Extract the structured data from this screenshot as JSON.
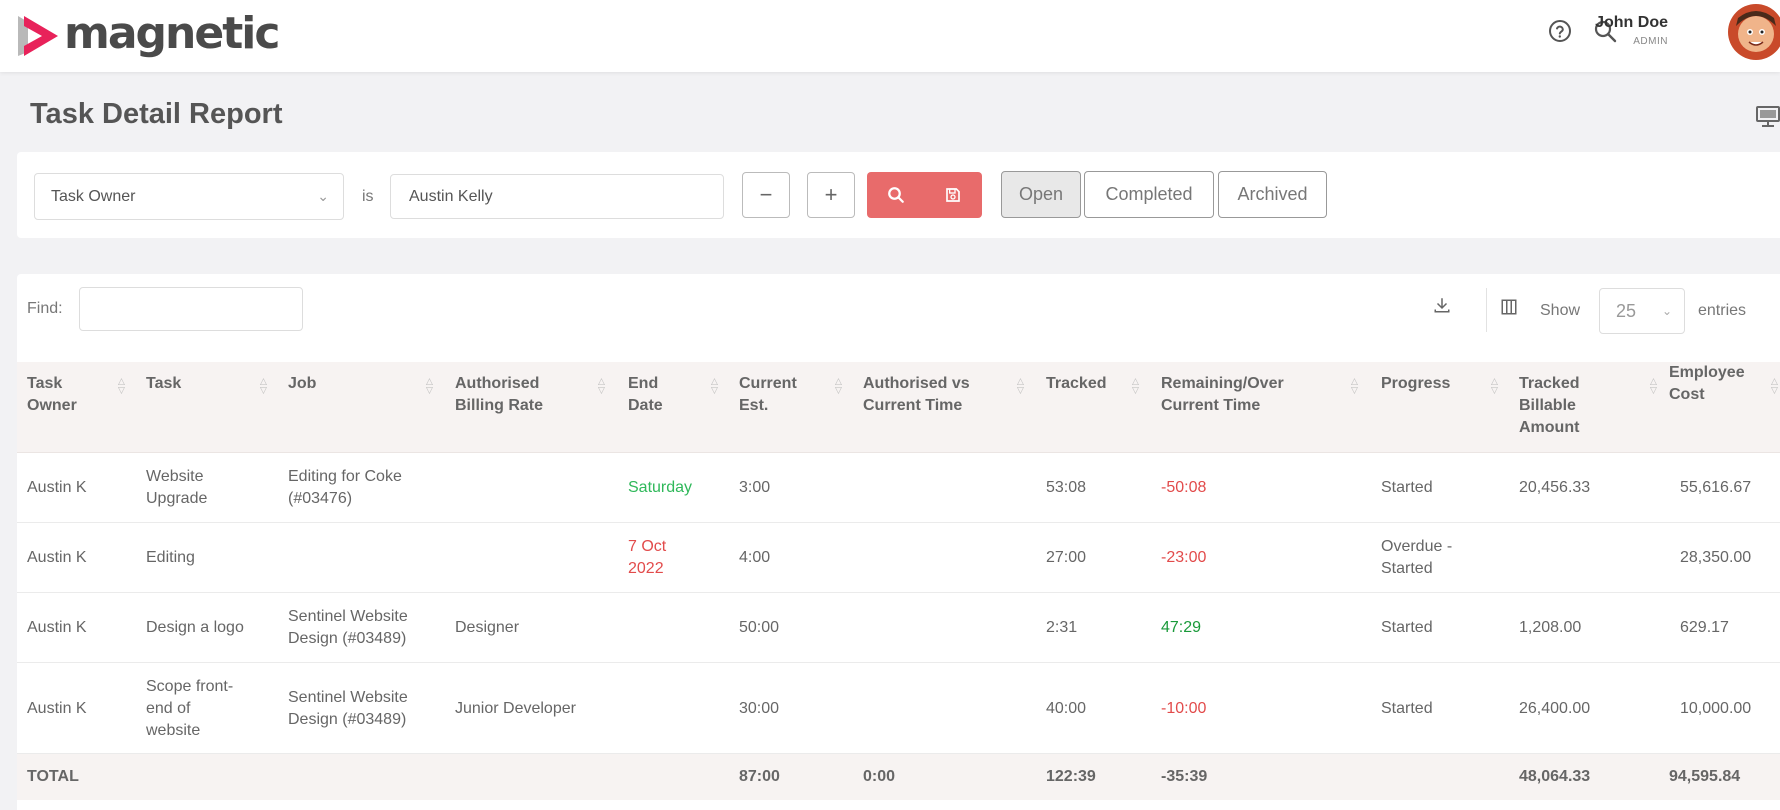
{
  "brand": {
    "name": "magnetic",
    "accent": "#e8225a"
  },
  "user": {
    "name": "John Doe",
    "role": "ADMIN"
  },
  "icons": {
    "help": "help-circle-icon",
    "search": "search-icon",
    "monitor": "monitor-icon",
    "download": "download-icon",
    "columns": "columns-icon"
  },
  "page": {
    "title": "Task Detail Report"
  },
  "filter": {
    "field": "Task Owner",
    "operator": "is",
    "value": "Austin Kelly",
    "remove_label": "−",
    "add_label": "+",
    "states": [
      "Open",
      "Completed",
      "Archived"
    ],
    "active_state": "Open"
  },
  "table_controls": {
    "find_label": "Find:",
    "find_value": "",
    "show_label": "Show",
    "page_size": "25",
    "entries_label": "entries"
  },
  "columns": [
    [
      "Task",
      "Owner"
    ],
    [
      "Task"
    ],
    [
      "Job"
    ],
    [
      "Authorised",
      "Billing Rate"
    ],
    [
      "End",
      "Date"
    ],
    [
      "Current",
      "Est."
    ],
    [
      "Authorised vs",
      "Current Time"
    ],
    [
      "Tracked"
    ],
    [
      "Remaining/Over",
      "Current Time"
    ],
    [
      "Progress"
    ],
    [
      "Tracked",
      "Billable",
      "Amount"
    ],
    [
      "Employee",
      "Cost"
    ]
  ],
  "rows": [
    {
      "owner": "Austin K",
      "task": [
        "Website",
        "Upgrade"
      ],
      "job": [
        "Editing for Coke",
        "(#03476)"
      ],
      "rate": "",
      "end_date": [
        "Saturday"
      ],
      "est": "3:00",
      "auth_vs": "",
      "tracked": "53:08",
      "remaining": "-50:08",
      "progress": [
        "Started"
      ],
      "billable": "20,456.33",
      "cost": "55,616.67"
    },
    {
      "owner": "Austin K",
      "task": [
        "Editing"
      ],
      "job": [],
      "rate": "",
      "end_date": [
        "7 Oct",
        "2022"
      ],
      "est": "4:00",
      "auth_vs": "",
      "tracked": "27:00",
      "remaining": "-23:00",
      "progress": [
        "Overdue -",
        "Started"
      ],
      "billable": "",
      "cost": "28,350.00"
    },
    {
      "owner": "Austin K",
      "task": [
        "Design a logo"
      ],
      "job": [
        "Sentinel Website",
        "Design (#03489)"
      ],
      "rate": "Designer",
      "end_date": [],
      "est": "50:00",
      "auth_vs": "",
      "tracked": "2:31",
      "remaining": "47:29",
      "progress": [
        "Started"
      ],
      "billable": "1,208.00",
      "cost": "629.17"
    },
    {
      "owner": "Austin K",
      "task": [
        "Scope front-",
        "end of",
        "website"
      ],
      "job": [
        "Sentinel Website",
        "Design (#03489)"
      ],
      "rate": "Junior Developer",
      "end_date": [],
      "est": "30:00",
      "auth_vs": "",
      "tracked": "40:00",
      "remaining": "-10:00",
      "progress": [
        "Started"
      ],
      "billable": "26,400.00",
      "cost": "10,000.00"
    }
  ],
  "totals": {
    "label": "TOTAL",
    "est": "87:00",
    "auth_vs": "0:00",
    "tracked": "122:39",
    "remaining": "-35:39",
    "billable": "48,064.33",
    "cost": "94,595.84"
  }
}
